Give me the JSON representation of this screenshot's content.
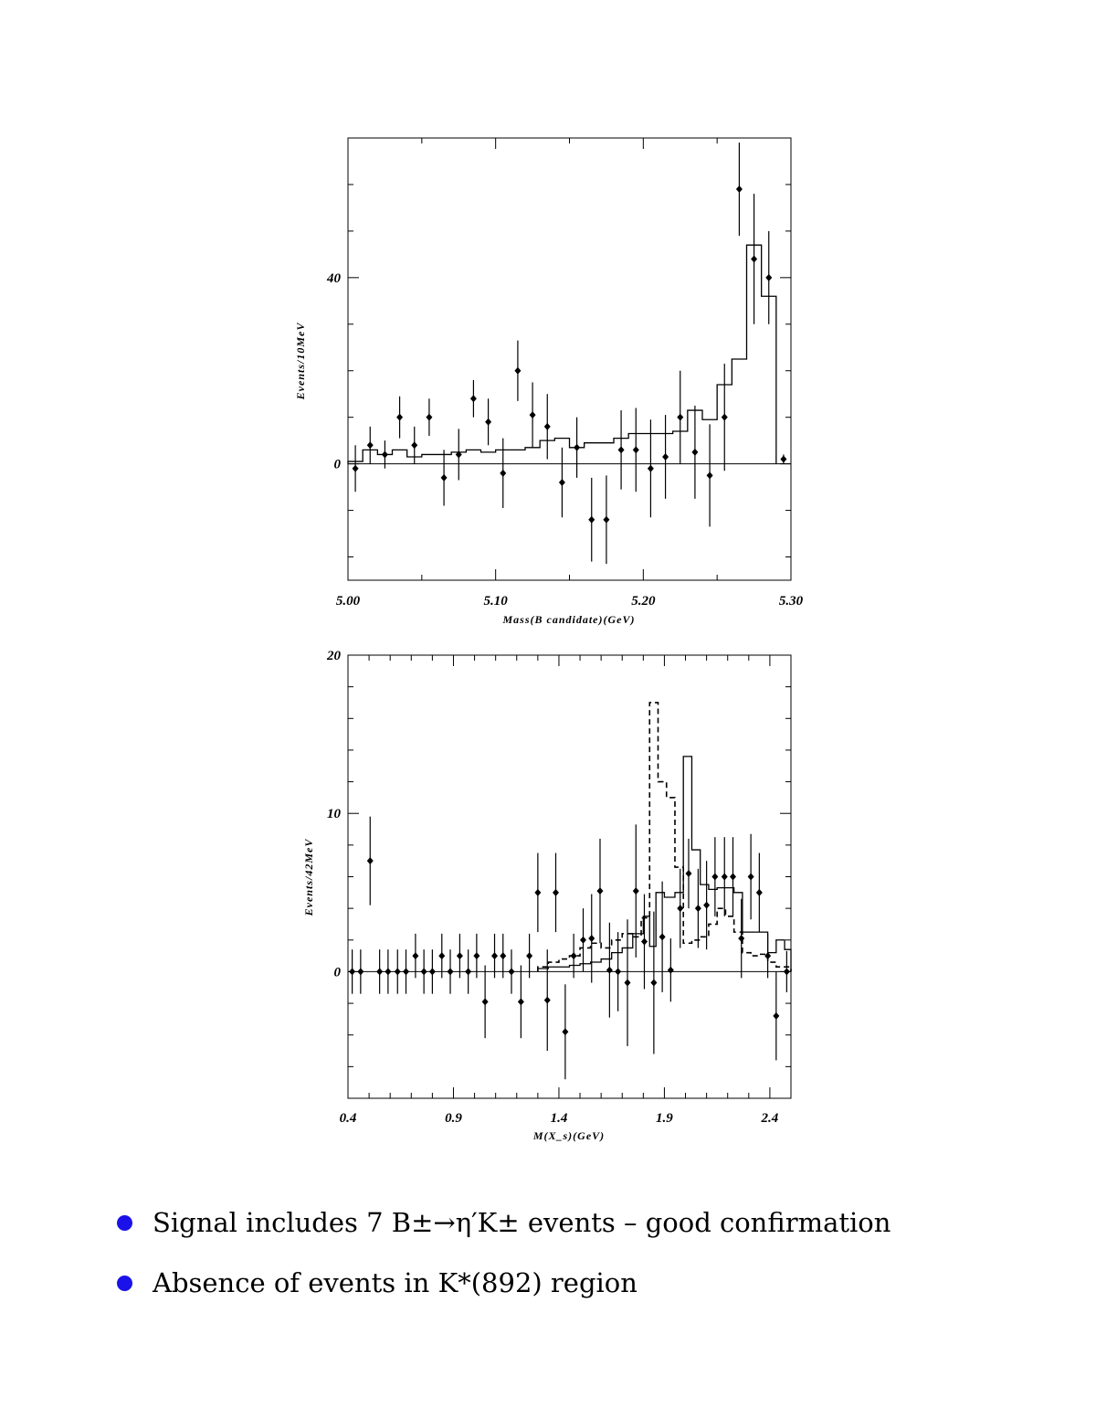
{
  "charts": [
    {
      "type": "scatter",
      "xlabel": "Mass(B candidate)(GeV)",
      "ylabel": "Events/10MeV",
      "xlim": [
        5.0,
        5.3
      ],
      "ylim": [
        -25,
        70
      ],
      "xticks": [
        {
          "v": 5.0,
          "label": "5.00"
        },
        {
          "v": 5.1,
          "label": "5.10"
        },
        {
          "v": 5.2,
          "label": "5.20"
        },
        {
          "v": 5.3,
          "label": "5.30"
        }
      ],
      "yticks": [
        {
          "v": 0,
          "label": "0"
        },
        {
          "v": 40,
          "label": "40"
        }
      ],
      "points": [
        {
          "x": 5.005,
          "y": -1,
          "err": 5
        },
        {
          "x": 5.015,
          "y": 4,
          "err": 4
        },
        {
          "x": 5.025,
          "y": 2,
          "err": 3
        },
        {
          "x": 5.035,
          "y": 10,
          "err": 4.5
        },
        {
          "x": 5.045,
          "y": 4,
          "err": 4
        },
        {
          "x": 5.055,
          "y": 10,
          "err": 4
        },
        {
          "x": 5.065,
          "y": -3,
          "err": 6
        },
        {
          "x": 5.075,
          "y": 2,
          "err": 5.5
        },
        {
          "x": 5.085,
          "y": 14,
          "err": 4
        },
        {
          "x": 5.095,
          "y": 9,
          "err": 5
        },
        {
          "x": 5.105,
          "y": -2,
          "err": 7.5
        },
        {
          "x": 5.115,
          "y": 20,
          "err": 6.5
        },
        {
          "x": 5.125,
          "y": 10.5,
          "err": 7
        },
        {
          "x": 5.135,
          "y": 8,
          "err": 7
        },
        {
          "x": 5.145,
          "y": -4,
          "err": 7.5
        },
        {
          "x": 5.155,
          "y": 3.5,
          "err": 6.5
        },
        {
          "x": 5.165,
          "y": -12,
          "err": 9
        },
        {
          "x": 5.175,
          "y": -12,
          "err": 9.5
        },
        {
          "x": 5.185,
          "y": 3,
          "err": 8.5
        },
        {
          "x": 5.195,
          "y": 3,
          "err": 9
        },
        {
          "x": 5.205,
          "y": -1,
          "err": 10.5
        },
        {
          "x": 5.215,
          "y": 1.5,
          "err": 9
        },
        {
          "x": 5.225,
          "y": 10,
          "err": 10
        },
        {
          "x": 5.235,
          "y": 2.5,
          "err": 10
        },
        {
          "x": 5.245,
          "y": -2.5,
          "err": 11
        },
        {
          "x": 5.255,
          "y": 10,
          "err": 11.5
        },
        {
          "x": 5.265,
          "y": 59,
          "err": 10
        },
        {
          "x": 5.275,
          "y": 44,
          "err": 14
        },
        {
          "x": 5.285,
          "y": 40,
          "err": 10
        },
        {
          "x": 5.295,
          "y": 1,
          "err": 1
        }
      ],
      "histograms": [
        {
          "style": "solid",
          "edges": [
            5.0,
            5.01,
            5.02,
            5.03,
            5.04,
            5.05,
            5.06,
            5.07,
            5.08,
            5.09,
            5.1,
            5.11,
            5.12,
            5.13,
            5.14,
            5.15,
            5.16,
            5.17,
            5.18,
            5.19,
            5.2,
            5.21,
            5.22,
            5.23,
            5.24,
            5.25,
            5.26,
            5.27,
            5.28,
            5.29
          ],
          "values": [
            0.5,
            3,
            2,
            3,
            1.5,
            2,
            2,
            2.5,
            3,
            2.5,
            3,
            3,
            3.5,
            5,
            5.5,
            3.5,
            4.5,
            4.5,
            5.5,
            6.5,
            6.5,
            6.5,
            7,
            11.5,
            9.5,
            17,
            22.5,
            47,
            36
          ]
        }
      ]
    },
    {
      "type": "scatter",
      "xlabel": "M(X_s)(GeV)",
      "ylabel": "Events/42MeV",
      "xlim": [
        0.4,
        2.5
      ],
      "ylim": [
        -8,
        20
      ],
      "xticks": [
        {
          "v": 0.4,
          "label": "0.4"
        },
        {
          "v": 0.9,
          "label": "0.9"
        },
        {
          "v": 1.4,
          "label": "1.4"
        },
        {
          "v": 1.9,
          "label": "1.9"
        },
        {
          "v": 2.4,
          "label": "2.4"
        }
      ],
      "yticks": [
        {
          "v": 0,
          "label": "0"
        },
        {
          "v": 10,
          "label": "10"
        },
        {
          "v": 20,
          "label": "20"
        }
      ],
      "points": [
        {
          "x": 0.42,
          "y": 0,
          "err": 1.4
        },
        {
          "x": 0.46,
          "y": 0,
          "err": 1.4
        },
        {
          "x": 0.505,
          "y": 7,
          "err": 2.8
        },
        {
          "x": 0.55,
          "y": 0,
          "err": 1.4
        },
        {
          "x": 0.59,
          "y": 0,
          "err": 1.4
        },
        {
          "x": 0.635,
          "y": 0,
          "err": 1.4
        },
        {
          "x": 0.675,
          "y": 0,
          "err": 1.4
        },
        {
          "x": 0.72,
          "y": 1,
          "err": 1.4
        },
        {
          "x": 0.76,
          "y": 0,
          "err": 1.4
        },
        {
          "x": 0.8,
          "y": 0,
          "err": 1.4
        },
        {
          "x": 0.845,
          "y": 1,
          "err": 1.4
        },
        {
          "x": 0.885,
          "y": 0,
          "err": 1.4
        },
        {
          "x": 0.93,
          "y": 1,
          "err": 1.4
        },
        {
          "x": 0.97,
          "y": 0,
          "err": 1.4
        },
        {
          "x": 1.01,
          "y": 1,
          "err": 1.4
        },
        {
          "x": 1.05,
          "y": -1.9,
          "err": 2.3
        },
        {
          "x": 1.095,
          "y": 1,
          "err": 1.4
        },
        {
          "x": 1.135,
          "y": 1,
          "err": 1.4
        },
        {
          "x": 1.175,
          "y": 0,
          "err": 1.4
        },
        {
          "x": 1.22,
          "y": -1.9,
          "err": 2.3
        },
        {
          "x": 1.26,
          "y": 1,
          "err": 1.4
        },
        {
          "x": 1.3,
          "y": 5,
          "err": 2.5
        },
        {
          "x": 1.345,
          "y": -1.8,
          "err": 3.2
        },
        {
          "x": 1.385,
          "y": 5,
          "err": 2.5
        },
        {
          "x": 1.43,
          "y": -3.8,
          "err": 3
        },
        {
          "x": 1.47,
          "y": 1,
          "err": 1.4
        },
        {
          "x": 1.515,
          "y": 2,
          "err": 2
        },
        {
          "x": 1.555,
          "y": 2.1,
          "err": 2.8
        },
        {
          "x": 1.595,
          "y": 5.1,
          "err": 3.3
        },
        {
          "x": 1.64,
          "y": 0.1,
          "err": 3
        },
        {
          "x": 1.68,
          "y": 0,
          "err": 2.5
        },
        {
          "x": 1.725,
          "y": -0.7,
          "err": 4
        },
        {
          "x": 1.765,
          "y": 5.1,
          "err": 4.2
        },
        {
          "x": 1.805,
          "y": 1.9,
          "err": 3
        },
        {
          "x": 1.85,
          "y": -0.7,
          "err": 4.5
        },
        {
          "x": 1.89,
          "y": 2.2,
          "err": 3.5
        },
        {
          "x": 1.93,
          "y": 0.1,
          "err": 2
        },
        {
          "x": 1.975,
          "y": 4,
          "err": 2.5
        },
        {
          "x": 2.015,
          "y": 6.2,
          "err": 2.2
        },
        {
          "x": 2.06,
          "y": 4,
          "err": 2.5
        },
        {
          "x": 2.1,
          "y": 4.2,
          "err": 2.8
        },
        {
          "x": 2.14,
          "y": 6,
          "err": 2.5
        },
        {
          "x": 2.185,
          "y": 6,
          "err": 2.5
        },
        {
          "x": 2.225,
          "y": 6,
          "err": 2.5
        },
        {
          "x": 2.265,
          "y": 2.1,
          "err": 2.5
        },
        {
          "x": 2.31,
          "y": 6,
          "err": 2.7
        },
        {
          "x": 2.35,
          "y": 5,
          "err": 2.5
        },
        {
          "x": 2.39,
          "y": 1,
          "err": 1.4
        },
        {
          "x": 2.43,
          "y": -2.8,
          "err": 2.8
        },
        {
          "x": 2.48,
          "y": 0,
          "err": 1.3
        }
      ],
      "histograms": [
        {
          "style": "solid",
          "edges": [
            1.3,
            1.35,
            1.4,
            1.45,
            1.5,
            1.55,
            1.6,
            1.65,
            1.7,
            1.75,
            1.8,
            1.83,
            1.86,
            1.9,
            1.95,
            1.99,
            2.03,
            2.07,
            2.11,
            2.15,
            2.19,
            2.23,
            2.27,
            2.31,
            2.35,
            2.39,
            2.43,
            2.47,
            2.5
          ],
          "values": [
            0.2,
            0.3,
            0.3,
            0.4,
            0.5,
            0.6,
            0.8,
            1.2,
            1.5,
            2.4,
            3.5,
            1.6,
            5,
            4.7,
            5,
            13.6,
            7.7,
            5.5,
            5.2,
            5.3,
            5.3,
            5,
            2.5,
            2.5,
            2.5,
            1.2,
            2,
            1.4
          ]
        },
        {
          "style": "dashed",
          "edges": [
            1.3,
            1.35,
            1.4,
            1.45,
            1.5,
            1.55,
            1.6,
            1.65,
            1.7,
            1.75,
            1.79,
            1.83,
            1.87,
            1.91,
            1.95,
            1.99,
            2.03,
            2.07,
            2.11,
            2.15,
            2.19,
            2.23,
            2.27,
            2.31,
            2.35,
            2.39,
            2.43,
            2.5
          ],
          "values": [
            0.3,
            0.6,
            0.8,
            1,
            1.5,
            1.8,
            1.5,
            2,
            2.4,
            2.2,
            3.4,
            17,
            12,
            11,
            6.6,
            1.8,
            2,
            2.2,
            3,
            4,
            3.5,
            2.5,
            1.2,
            1,
            1.1,
            0.6,
            0.3
          ]
        }
      ]
    }
  ],
  "bullets": [
    {
      "text": "Signal includes 7 B±→η′K± events – good confirmation"
    },
    {
      "text": "Absence of events in K*(892) region"
    }
  ]
}
